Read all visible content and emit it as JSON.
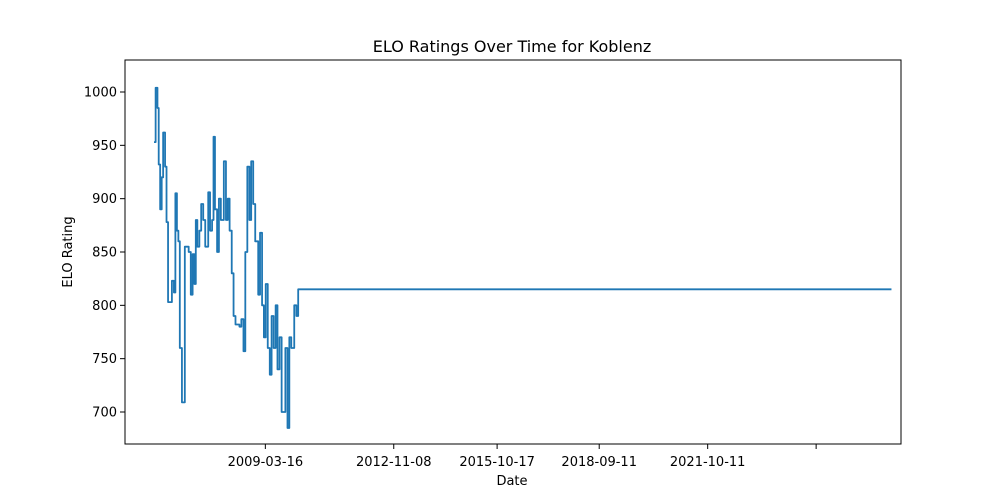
{
  "chart_data": {
    "type": "line",
    "title": "ELO Ratings Over Time for Koblenz",
    "xlabel": "Date",
    "ylabel": "ELO Rating",
    "grid": false,
    "legend": "none",
    "xlim": [
      "2005-03-20",
      "2027-04-10"
    ],
    "ylim": [
      670,
      1030
    ],
    "x_ticks": [
      "2009-03-16",
      "2012-11-08",
      "2015-10-17",
      "2018-09-11",
      "2021-10-11",
      ""
    ],
    "y_ticks": [
      700,
      750,
      800,
      850,
      900,
      950,
      1000
    ],
    "series": [
      {
        "color": "#1f77b4",
        "x": [
          "2006-01-15",
          "2006-02-01",
          "2006-02-20",
          "2006-03-05",
          "2006-03-20",
          "2006-04-05",
          "2006-04-20",
          "2006-05-10",
          "2006-05-25",
          "2006-06-10",
          "2006-07-01",
          "2006-07-20",
          "2006-08-10",
          "2006-08-25",
          "2006-09-10",
          "2006-09-25",
          "2006-10-10",
          "2006-11-01",
          "2006-12-01",
          "2007-01-10",
          "2007-02-01",
          "2007-02-20",
          "2007-03-10",
          "2007-03-25",
          "2007-04-10",
          "2007-05-01",
          "2007-05-20",
          "2007-06-10",
          "2007-07-01",
          "2007-08-01",
          "2007-08-20",
          "2007-09-10",
          "2007-09-25",
          "2007-10-10",
          "2007-11-01",
          "2007-11-20",
          "2007-12-10",
          "2008-01-10",
          "2008-02-01",
          "2008-02-20",
          "2008-03-10",
          "2008-04-01",
          "2008-04-20",
          "2008-05-10",
          "2008-06-01",
          "2008-06-20",
          "2008-07-10",
          "2008-08-01",
          "2008-08-20",
          "2008-09-10",
          "2008-10-01",
          "2008-10-20",
          "2008-11-10",
          "2008-12-01",
          "2009-01-01",
          "2009-01-20",
          "2009-02-10",
          "2009-03-01",
          "2009-03-20",
          "2009-04-10",
          "2009-05-01",
          "2009-05-20",
          "2009-06-10",
          "2009-07-01",
          "2009-07-20",
          "2009-08-10",
          "2009-09-01",
          "2009-09-20",
          "2009-10-10",
          "2009-11-01",
          "2009-11-20",
          "2009-12-10",
          "2010-01-10",
          "2010-02-01",
          "2010-02-20",
          "2010-03-10",
          "2010-04-01",
          "2010-04-20",
          "2010-05-10",
          "2010-06-01",
          "2010-07-01",
          "2010-08-01",
          "2010-09-01",
          "2010-10-01",
          "2027-01-01"
        ],
        "values": [
          953,
          1004,
          985,
          932,
          890,
          920,
          962,
          930,
          878,
          803,
          803,
          823,
          812,
          905,
          870,
          860,
          760,
          709,
          855,
          850,
          810,
          848,
          820,
          880,
          855,
          870,
          895,
          880,
          855,
          906,
          870,
          880,
          958,
          890,
          850,
          900,
          880,
          935,
          880,
          900,
          870,
          830,
          790,
          782,
          782,
          780,
          787,
          757,
          850,
          930,
          880,
          935,
          895,
          860,
          810,
          868,
          800,
          770,
          820,
          760,
          735,
          790,
          760,
          800,
          740,
          770,
          700,
          700,
          760,
          685,
          770,
          760,
          800,
          790,
          815,
          815,
          815,
          815,
          815,
          815,
          815,
          815,
          815,
          815,
          815
        ]
      }
    ]
  }
}
